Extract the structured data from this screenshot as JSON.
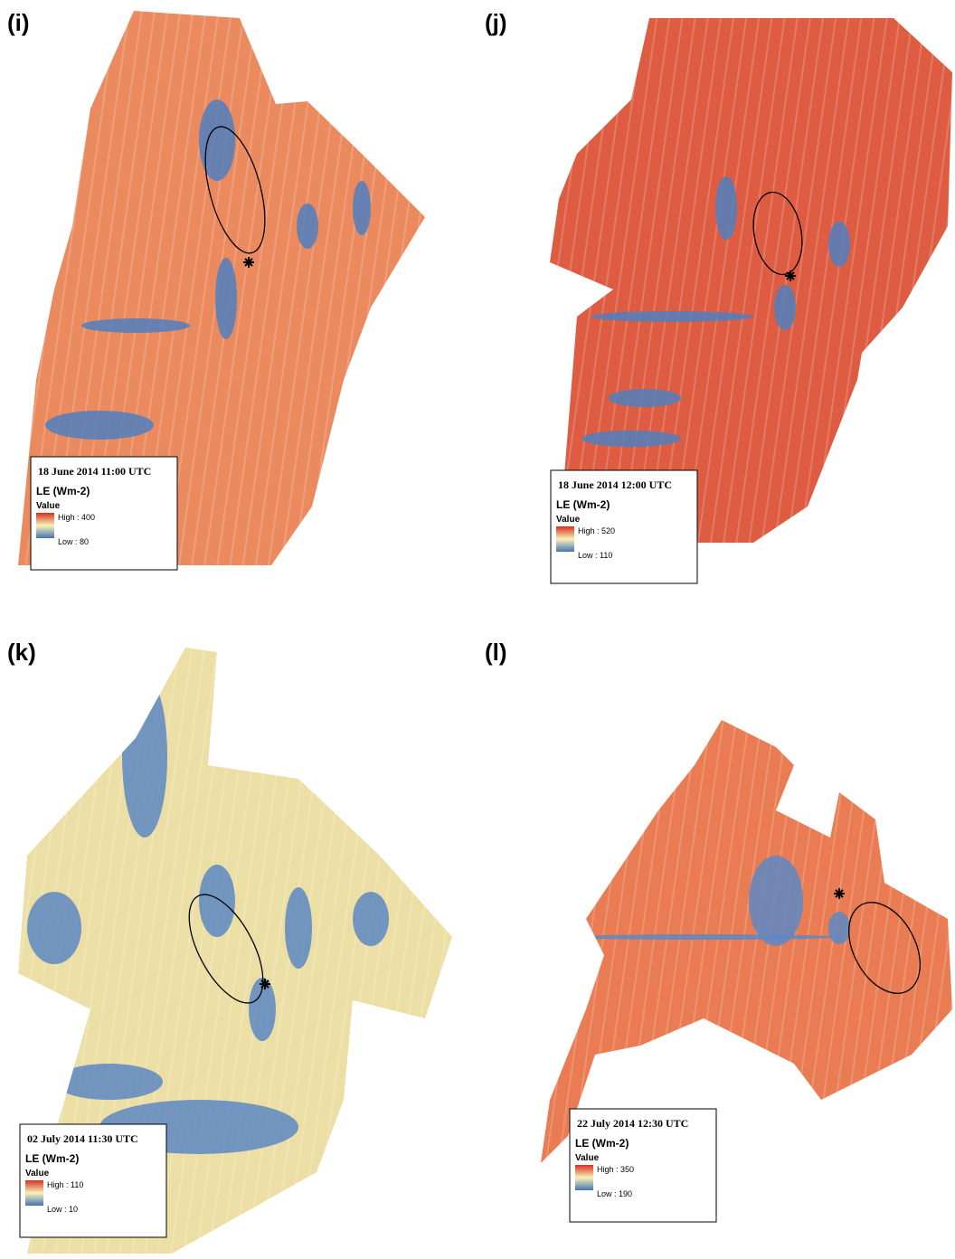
{
  "panels": [
    {
      "label": "(i)",
      "date": "18 June 2014 11:00 UTC",
      "variable": "LE (Wm-2)",
      "legend_title": "Value",
      "high": "High : 400",
      "low": "Low : 80"
    },
    {
      "label": "(j)",
      "date": "18 June 2014 12:00 UTC",
      "variable": "LE (Wm-2)",
      "legend_title": "Value",
      "high": "High : 520",
      "low": "Low : 110"
    },
    {
      "label": "(k)",
      "date": "02 July 2014 11:30 UTC",
      "variable": "LE (Wm-2)",
      "legend_title": "Value",
      "high": "High : 110",
      "low": "Low : 10"
    },
    {
      "label": "(l)",
      "date": "22 July 2014 12:30 UTC",
      "variable": "LE (Wm-2)",
      "legend_title": "Value",
      "high": "High : 350",
      "low": "Low : 190"
    }
  ]
}
